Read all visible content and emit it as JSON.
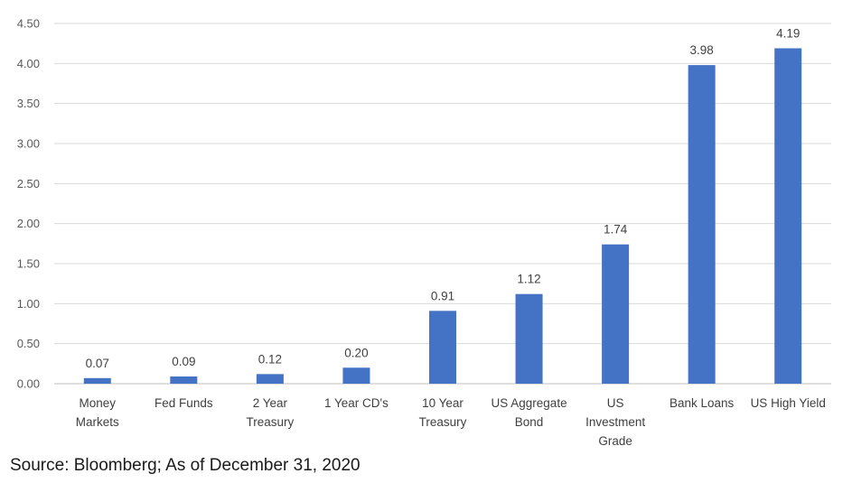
{
  "chart_data": {
    "type": "bar",
    "categories": [
      [
        "Money",
        "Markets"
      ],
      [
        "Fed Funds"
      ],
      [
        "2 Year",
        "Treasury"
      ],
      [
        "1 Year CD's"
      ],
      [
        "10 Year",
        "Treasury"
      ],
      [
        "US Aggregate",
        "Bond"
      ],
      [
        "US",
        "Investment",
        "Grade"
      ],
      [
        "Bank Loans"
      ],
      [
        "US High Yield"
      ]
    ],
    "values": [
      0.07,
      0.09,
      0.12,
      0.2,
      0.91,
      1.12,
      1.74,
      3.98,
      4.19
    ],
    "data_labels": [
      "0.07",
      "0.09",
      "0.12",
      "0.20",
      "0.91",
      "1.12",
      "1.74",
      "3.98",
      "4.19"
    ],
    "y_ticks": [
      "0.00",
      "0.50",
      "1.00",
      "1.50",
      "2.00",
      "2.50",
      "3.00",
      "3.50",
      "4.00",
      "4.50"
    ],
    "ylim": [
      0,
      4.5
    ],
    "grid": true,
    "bar_color": "#4472C4",
    "grid_color": "#d9d9d9"
  },
  "source_note": "Source: Bloomberg; As of December 31, 2020"
}
